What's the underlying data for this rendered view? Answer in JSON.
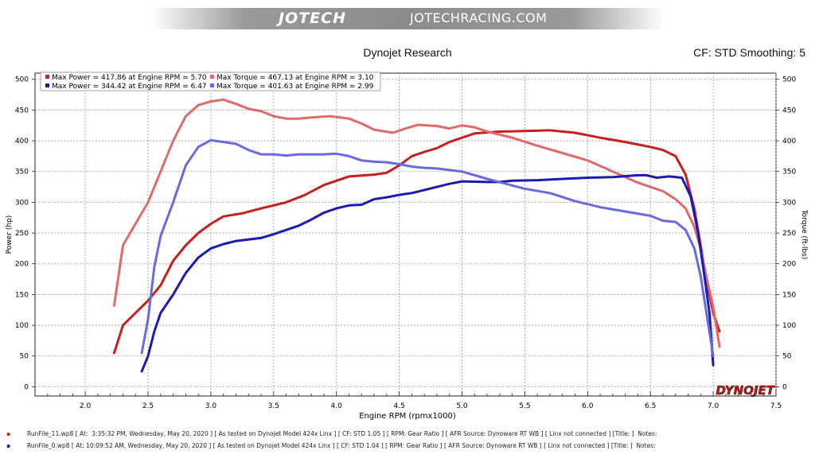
{
  "banner": {
    "logo": "JOTECH",
    "site": "JOTECHRACING.COM"
  },
  "header": {
    "title": "Dynojet Research",
    "cf": "CF: STD Smoothing: 5"
  },
  "brand": "DYNOJET",
  "colors": {
    "run1_power": "#c81e1e",
    "run1_torque": "#e06a6a",
    "run2_power": "#1a1ab4",
    "run2_torque": "#6a6ae0"
  },
  "chart_data": {
    "type": "line",
    "xlabel": "Engine RPM (rpmx1000)",
    "ylabel_left": "Power (hp)",
    "ylabel_right": "Torque (ft-lbs)",
    "xlim": [
      1.6,
      7.5
    ],
    "ylim": [
      0,
      500
    ],
    "x_ticks": [
      "2.0",
      "2.5",
      "3.0",
      "3.5",
      "4.0",
      "4.5",
      "5.0",
      "5.5",
      "6.0",
      "6.5",
      "7.0",
      "7.5"
    ],
    "y_ticks": [
      "0",
      "50",
      "100",
      "150",
      "200",
      "250",
      "300",
      "350",
      "400",
      "450",
      "500"
    ],
    "grid": true,
    "legend_position": "top-left",
    "legend": [
      "Max Power = 417.86 at Engine RPM = 5.70",
      "Max Torque = 467.13 at Engine RPM = 3.10",
      "Max Power = 344.42 at Engine RPM = 6.47",
      "Max Torque = 401.63 at Engine RPM = 2.99"
    ],
    "series": [
      {
        "key": "run1_power",
        "points": [
          [
            2.23,
            55
          ],
          [
            2.3,
            100
          ],
          [
            2.4,
            120
          ],
          [
            2.5,
            140
          ],
          [
            2.6,
            165
          ],
          [
            2.7,
            205
          ],
          [
            2.8,
            230
          ],
          [
            2.9,
            250
          ],
          [
            3.0,
            265
          ],
          [
            3.1,
            277
          ],
          [
            3.25,
            282
          ],
          [
            3.4,
            290
          ],
          [
            3.5,
            295
          ],
          [
            3.6,
            300
          ],
          [
            3.75,
            312
          ],
          [
            3.9,
            328
          ],
          [
            4.0,
            335
          ],
          [
            4.1,
            342
          ],
          [
            4.3,
            345
          ],
          [
            4.4,
            348
          ],
          [
            4.5,
            360
          ],
          [
            4.6,
            375
          ],
          [
            4.7,
            382
          ],
          [
            4.8,
            388
          ],
          [
            4.9,
            398
          ],
          [
            5.0,
            405
          ],
          [
            5.1,
            412
          ],
          [
            5.3,
            415
          ],
          [
            5.5,
            416
          ],
          [
            5.7,
            417
          ],
          [
            5.9,
            413
          ],
          [
            6.1,
            405
          ],
          [
            6.3,
            398
          ],
          [
            6.5,
            390
          ],
          [
            6.6,
            385
          ],
          [
            6.7,
            375
          ],
          [
            6.78,
            345
          ],
          [
            6.85,
            290
          ],
          [
            6.9,
            230
          ],
          [
            6.95,
            170
          ],
          [
            7.0,
            120
          ],
          [
            7.05,
            90
          ]
        ]
      },
      {
        "key": "run1_torque",
        "points": [
          [
            2.23,
            132
          ],
          [
            2.3,
            230
          ],
          [
            2.4,
            265
          ],
          [
            2.5,
            300
          ],
          [
            2.6,
            350
          ],
          [
            2.7,
            400
          ],
          [
            2.8,
            440
          ],
          [
            2.9,
            458
          ],
          [
            3.0,
            464
          ],
          [
            3.1,
            467
          ],
          [
            3.2,
            460
          ],
          [
            3.3,
            452
          ],
          [
            3.4,
            448
          ],
          [
            3.5,
            440
          ],
          [
            3.6,
            436
          ],
          [
            3.7,
            436
          ],
          [
            3.8,
            438
          ],
          [
            3.95,
            440
          ],
          [
            4.1,
            436
          ],
          [
            4.2,
            428
          ],
          [
            4.3,
            418
          ],
          [
            4.45,
            413
          ],
          [
            4.55,
            420
          ],
          [
            4.65,
            426
          ],
          [
            4.8,
            424
          ],
          [
            4.9,
            420
          ],
          [
            5.0,
            425
          ],
          [
            5.1,
            422
          ],
          [
            5.2,
            415
          ],
          [
            5.4,
            405
          ],
          [
            5.6,
            392
          ],
          [
            5.8,
            380
          ],
          [
            6.0,
            368
          ],
          [
            6.2,
            350
          ],
          [
            6.4,
            332
          ],
          [
            6.6,
            318
          ],
          [
            6.7,
            305
          ],
          [
            6.78,
            290
          ],
          [
            6.85,
            260
          ],
          [
            6.9,
            225
          ],
          [
            6.95,
            175
          ],
          [
            7.0,
            130
          ],
          [
            7.05,
            65
          ]
        ]
      },
      {
        "key": "run2_power",
        "points": [
          [
            2.45,
            25
          ],
          [
            2.5,
            50
          ],
          [
            2.55,
            90
          ],
          [
            2.6,
            120
          ],
          [
            2.7,
            150
          ],
          [
            2.8,
            185
          ],
          [
            2.9,
            210
          ],
          [
            3.0,
            225
          ],
          [
            3.1,
            232
          ],
          [
            3.2,
            237
          ],
          [
            3.4,
            242
          ],
          [
            3.5,
            248
          ],
          [
            3.6,
            255
          ],
          [
            3.7,
            262
          ],
          [
            3.8,
            272
          ],
          [
            3.9,
            283
          ],
          [
            4.0,
            290
          ],
          [
            4.1,
            295
          ],
          [
            4.2,
            296
          ],
          [
            4.3,
            305
          ],
          [
            4.4,
            308
          ],
          [
            4.5,
            312
          ],
          [
            4.6,
            315
          ],
          [
            4.7,
            320
          ],
          [
            4.8,
            325
          ],
          [
            4.9,
            330
          ],
          [
            5.0,
            334
          ],
          [
            5.2,
            333
          ],
          [
            5.3,
            333
          ],
          [
            5.4,
            335
          ],
          [
            5.6,
            336
          ],
          [
            5.8,
            338
          ],
          [
            6.0,
            340
          ],
          [
            6.2,
            341
          ],
          [
            6.4,
            344
          ],
          [
            6.47,
            344
          ],
          [
            6.55,
            340
          ],
          [
            6.65,
            342
          ],
          [
            6.75,
            340
          ],
          [
            6.82,
            310
          ],
          [
            6.88,
            250
          ],
          [
            6.93,
            180
          ],
          [
            6.97,
            120
          ],
          [
            7.0,
            35
          ]
        ]
      },
      {
        "key": "run2_torque",
        "points": [
          [
            2.45,
            55
          ],
          [
            2.5,
            110
          ],
          [
            2.55,
            195
          ],
          [
            2.6,
            245
          ],
          [
            2.7,
            300
          ],
          [
            2.8,
            360
          ],
          [
            2.9,
            390
          ],
          [
            3.0,
            401
          ],
          [
            3.1,
            398
          ],
          [
            3.2,
            395
          ],
          [
            3.3,
            385
          ],
          [
            3.4,
            378
          ],
          [
            3.5,
            378
          ],
          [
            3.6,
            376
          ],
          [
            3.7,
            378
          ],
          [
            3.8,
            378
          ],
          [
            3.9,
            378
          ],
          [
            4.0,
            379
          ],
          [
            4.1,
            375
          ],
          [
            4.2,
            368
          ],
          [
            4.3,
            366
          ],
          [
            4.4,
            365
          ],
          [
            4.5,
            362
          ],
          [
            4.6,
            358
          ],
          [
            4.7,
            356
          ],
          [
            4.8,
            355
          ],
          [
            5.0,
            350
          ],
          [
            5.2,
            338
          ],
          [
            5.35,
            330
          ],
          [
            5.5,
            322
          ],
          [
            5.7,
            315
          ],
          [
            5.9,
            302
          ],
          [
            6.1,
            292
          ],
          [
            6.3,
            285
          ],
          [
            6.5,
            278
          ],
          [
            6.6,
            270
          ],
          [
            6.7,
            268
          ],
          [
            6.78,
            255
          ],
          [
            6.85,
            225
          ],
          [
            6.9,
            180
          ],
          [
            6.95,
            115
          ],
          [
            7.0,
            50
          ]
        ]
      }
    ]
  },
  "footer": {
    "run1": "RunFile_11.wp8 [ At:  3:35:32 PM, Wednesday, May 20, 2020 ] [ As tested on Dynojet Model 424x Linx ] [ CF: STD 1.05 ] [ RPM: Gear Ratio ] [ AFR Source: Dynoware RT WB ] [ Linx not connected ] [Title: ]  Notes:",
    "run2": "RunFile_0.wp8 [ At: 10:09:52 AM, Wednesday, May 20, 2020 ] [ As tested on Dynojet Model 424x Linx ] [ CF: STD 1.04 ] [ RPM: Gear Ratio ] [ AFR Source: Dynoware RT WB ] [ Linx not connected ] [Title: ]  Notes:"
  }
}
